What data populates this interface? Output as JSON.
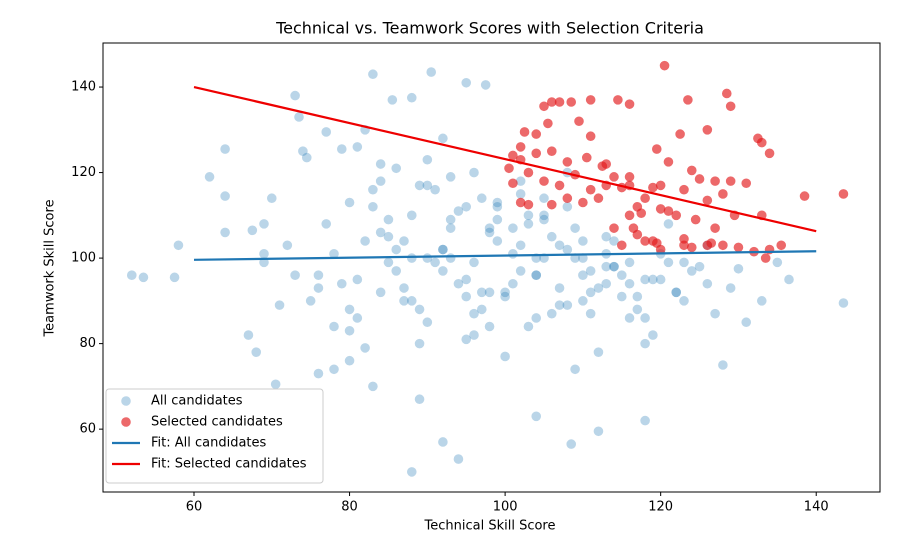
{
  "chart_data": {
    "type": "scatter",
    "title": "Technical vs. Teamwork Scores with Selection Criteria",
    "x_label": "Technical Skill Score",
    "y_label": "Teamwork Skill Score",
    "xlim": [
      48.3,
      148.2
    ],
    "ylim": [
      45.3,
      150.3
    ],
    "xticks": [
      60,
      80,
      100,
      120,
      140
    ],
    "yticks": [
      60,
      80,
      100,
      120,
      140
    ],
    "legend": "lower left",
    "series": [
      {
        "name": "All candidates",
        "type": "scatter",
        "color": "#1f77b4",
        "opacity": 0.3,
        "x": [
          52,
          53.5,
          57.5,
          58,
          62,
          64,
          64,
          73,
          73.5,
          83,
          90.5,
          95,
          97.5,
          88,
          94,
          92,
          108.5,
          112,
          118,
          143.5,
          136.5,
          133,
          131,
          128,
          70.5,
          67,
          68,
          71,
          76,
          78,
          80,
          83,
          89,
          104,
          135,
          130,
          88,
          85.5,
          81,
          79,
          77,
          82,
          74.5,
          74,
          69,
          67.5,
          69,
          69,
          64,
          70,
          72,
          76,
          78,
          80,
          82,
          84,
          86,
          88,
          90,
          92,
          94,
          96,
          98,
          100,
          102,
          104,
          106,
          108,
          110,
          112,
          114,
          116,
          118,
          120,
          122,
          124,
          75,
          77,
          79,
          81,
          83,
          85,
          87,
          89,
          91,
          93,
          95,
          97,
          99,
          101,
          103,
          105,
          107,
          109,
          111,
          113,
          115,
          117,
          119,
          121,
          123,
          80,
          82,
          84,
          86,
          88,
          90,
          92,
          94,
          96,
          98,
          100,
          102,
          104,
          106,
          108,
          110,
          112,
          114,
          116,
          118,
          85,
          87,
          89,
          91,
          93,
          95,
          97,
          99,
          101,
          103,
          105,
          107,
          109,
          111,
          113,
          78,
          81,
          84,
          87,
          90,
          93,
          96,
          99,
          102,
          105,
          108,
          111,
          114,
          117,
          120,
          123,
          126,
          86,
          89,
          92,
          95,
          98,
          101,
          104,
          107,
          110,
          113,
          116,
          83,
          88,
          93,
          98,
          103,
          108,
          113,
          118,
          95,
          100,
          105,
          110,
          90,
          85,
          97,
          102,
          125,
          127,
          122,
          119,
          115,
          96,
          92,
          84,
          80,
          76,
          73,
          99,
          104,
          109,
          121,
          126,
          129
        ],
        "values": [
          96,
          95.5,
          95.5,
          103,
          119,
          125.5,
          114.5,
          138,
          133,
          143,
          143.5,
          141,
          140.5,
          50,
          53,
          57,
          56.5,
          59.5,
          62,
          89.5,
          95,
          90,
          85,
          75,
          70.5,
          82,
          78,
          89,
          73,
          74,
          76,
          70,
          67,
          63,
          99,
          97.5,
          137.5,
          137,
          126,
          125.5,
          129.5,
          130,
          123.5,
          125,
          108,
          106.5,
          101,
          99,
          106,
          114,
          103,
          96,
          101,
          88,
          104,
          92,
          97,
          110,
          85,
          102,
          94,
          99,
          107,
          91,
          103,
          96,
          105,
          89,
          100,
          93,
          98,
          86,
          95,
          101,
          92,
          97,
          90,
          108,
          94,
          86,
          112,
          99,
          104,
          80,
          116,
          107,
          95,
          88,
          113,
          101,
          84,
          109,
          93,
          100,
          87,
          105,
          96,
          91,
          82,
          99,
          90,
          113,
          79,
          118,
          102,
          90,
          123,
          97,
          111,
          82,
          106,
          92,
          118,
          100,
          87,
          112,
          96,
          78,
          104,
          99,
          86,
          105,
          93,
          117,
          99,
          109,
          81,
          114,
          104,
          94,
          110,
          100,
          89,
          107,
          97,
          101,
          84,
          95,
          106,
          90,
          117,
          100,
          87,
          109,
          97,
          114,
          102,
          92,
          98,
          88,
          95,
          99,
          94,
          121,
          88,
          102,
          112,
          92,
          107,
          96,
          103,
          90,
          98,
          94,
          116,
          100,
          119,
          84,
          108,
          120,
          94,
          80,
          91,
          77,
          110,
          104,
          100,
          109,
          92,
          115,
          98,
          87,
          92,
          95,
          91,
          120,
          128,
          122,
          83,
          93,
          96,
          112,
          86,
          74,
          108,
          103,
          93
        ]
      },
      {
        "name": "Selected candidates",
        "type": "scatter",
        "color": "#e31a1c",
        "opacity": 0.65,
        "x": [
          120.5,
          128.5,
          129,
          123.5,
          106,
          105,
          107,
          108.5,
          111,
          114.5,
          116,
          109.5,
          105.5,
          102.5,
          104,
          111,
          122.5,
          126,
          132.5,
          133,
          134,
          119.5,
          101,
          102,
          104,
          106,
          108,
          110.5,
          112.5,
          114,
          116,
          118,
          121,
          124,
          125,
          127,
          129,
          131,
          103,
          105,
          107,
          109,
          111,
          113,
          115,
          117,
          117.5,
          119,
          120,
          122,
          123,
          126,
          128,
          102,
          103,
          106,
          108,
          110,
          112,
          114,
          115,
          116,
          116.5,
          117,
          118,
          119.5,
          123,
          123,
          124,
          126,
          126.5,
          127,
          128,
          129.5,
          130,
          132,
          133.5,
          134,
          135.5,
          138.5,
          143.5,
          133,
          124.5,
          120,
          101,
          100.5,
          102,
          113,
          116,
          119,
          120,
          121
        ],
        "values": [
          145,
          138.5,
          135.5,
          137,
          136.5,
          135.5,
          136.5,
          136.5,
          137,
          137,
          136,
          132,
          131.5,
          129.5,
          129,
          128.5,
          129,
          130,
          128,
          127,
          124.5,
          125.5,
          124,
          123,
          124.5,
          125,
          122.5,
          123.5,
          121.5,
          119,
          119,
          114,
          122.5,
          120.5,
          118.5,
          118,
          118,
          117.5,
          120,
          118,
          117,
          119.5,
          116,
          117,
          116.5,
          112,
          110.5,
          116.5,
          111.5,
          110,
          116,
          113.5,
          115,
          113,
          112.5,
          112.5,
          114,
          113,
          114,
          107,
          103,
          110,
          107,
          105.5,
          104,
          103.5,
          104.5,
          103,
          102.5,
          103,
          103.5,
          107,
          103,
          110,
          102.5,
          101.5,
          100,
          102,
          103,
          114.5,
          115,
          110,
          109,
          117,
          117.5,
          121,
          126,
          122,
          117,
          104,
          102,
          111
        ]
      },
      {
        "name": "Fit: All candidates",
        "type": "line",
        "color": "#1f77b4",
        "x": [
          60,
          140
        ],
        "values": [
          99.6,
          101.6
        ]
      },
      {
        "name": "Fit: Selected candidates",
        "type": "line",
        "color": "#ee0000",
        "x": [
          60,
          140
        ],
        "values": [
          140,
          106.3
        ]
      }
    ]
  }
}
